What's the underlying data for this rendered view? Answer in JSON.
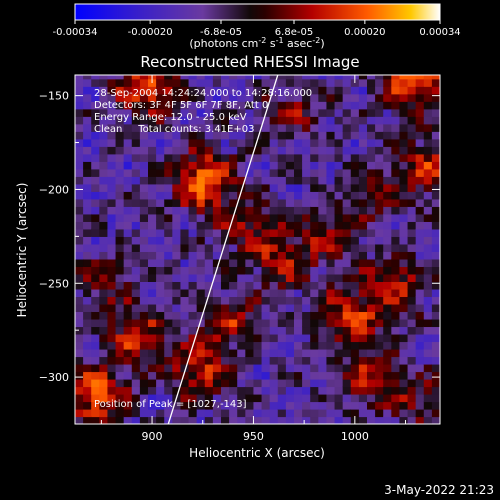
{
  "chart_data": {
    "type": "heatmap",
    "title": "Reconstructed RHESSI Image",
    "xlabel": "Heliocentric X (arcsec)",
    "ylabel": "Heliocentric Y (arcsec)",
    "xlim": [
      862,
      1042
    ],
    "ylim": [
      -325,
      -139
    ],
    "x_ticks": [
      900,
      950,
      1000
    ],
    "y_ticks": [
      -150,
      -200,
      -250,
      -300
    ],
    "colorbar": {
      "tick_labels": [
        "-0.00034",
        "-0.00020",
        "-6.8e-05",
        "6.8e-05",
        "0.00020",
        "0.00034"
      ],
      "tick_values": [
        -0.00034,
        -0.0002,
        -6.8e-05,
        6.8e-05,
        0.0002,
        0.00034
      ],
      "range": [
        -0.00034,
        0.00034
      ],
      "units_label": "(photons cm",
      "units_exp1": "-2",
      "units_mid": " s",
      "units_exp2": "-1",
      "units_mid2": " asec",
      "units_exp3": "-2",
      "units_end": ")"
    },
    "info_lines": [
      "28-Sep-2004 14:24:24.000 to 14:28:16.000",
      "Detectors: 3F 4F 5F 6F 7F 8F, Att 0",
      "Energy Range: 12.0 - 25.0 keV",
      "Clean     Total counts: 3.41E+03"
    ],
    "peak_label": "Position of Peak = [1027,-143]",
    "limb_line": {
      "x": [
        908,
        962
      ],
      "y": [
        -325,
        -139
      ]
    },
    "hotspots": [
      {
        "x": 896,
        "y": -147,
        "intensity": 0.0003
      },
      {
        "x": 924,
        "y": -197,
        "intensity": 0.00034
      },
      {
        "x": 1027,
        "y": -143,
        "intensity": 0.00034
      },
      {
        "x": 1036,
        "y": -190,
        "intensity": 0.00024
      },
      {
        "x": 870,
        "y": -312,
        "intensity": 0.0003
      },
      {
        "x": 890,
        "y": -280,
        "intensity": 0.00022
      },
      {
        "x": 922,
        "y": -298,
        "intensity": 0.00024
      },
      {
        "x": 935,
        "y": -270,
        "intensity": 0.0002
      },
      {
        "x": 963,
        "y": -240,
        "intensity": 0.00018
      },
      {
        "x": 995,
        "y": -270,
        "intensity": 0.00024
      },
      {
        "x": 1018,
        "y": -253,
        "intensity": 0.00022
      },
      {
        "x": 1005,
        "y": -303,
        "intensity": 0.0002
      },
      {
        "x": 985,
        "y": -225,
        "intensity": 0.00016
      },
      {
        "x": 945,
        "y": -222,
        "intensity": 0.00016
      },
      {
        "x": 1030,
        "y": -315,
        "intensity": 0.00014
      },
      {
        "x": 875,
        "y": -250,
        "intensity": 0.00014
      },
      {
        "x": 968,
        "y": -160,
        "intensity": 0.00014
      },
      {
        "x": 1010,
        "y": -205,
        "intensity": 0.00012
      }
    ]
  },
  "timestamp": "3-May-2022 21:23"
}
